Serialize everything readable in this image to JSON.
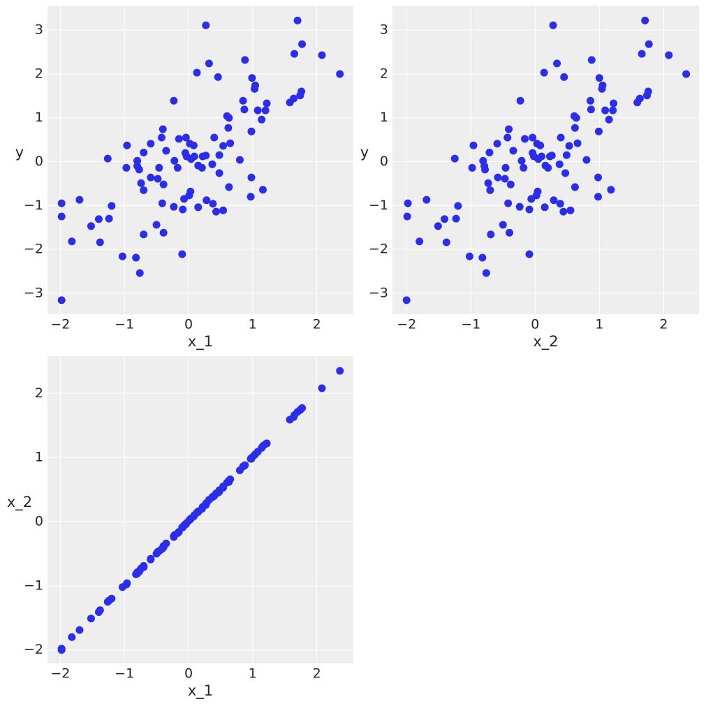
{
  "chart_data": [
    {
      "type": "scatter",
      "xlabel": "x_1",
      "ylabel": "y",
      "color": "#2a2eec",
      "grid": true,
      "xlim": [
        -2.2,
        2.57
      ],
      "ylim": [
        -3.48,
        3.56
      ],
      "xticks": [
        {
          "value": -2,
          "label": "−2"
        },
        {
          "value": -1,
          "label": "−1"
        },
        0,
        1,
        2
      ],
      "yticks": [
        {
          "value": -3,
          "label": "−3"
        },
        {
          "value": -2,
          "label": "−2"
        },
        {
          "value": -1,
          "label": "−1"
        },
        0,
        1,
        2,
        3
      ],
      "x": [
        -1.98,
        -1.98,
        -1.98,
        -1.82,
        -1.7,
        -1.52,
        -1.4,
        -1.38,
        -1.26,
        -1.24,
        -1.2,
        -1.03,
        -0.97,
        -0.96,
        -0.8,
        -0.8,
        -0.82,
        -0.77,
        -0.76,
        -0.74,
        -0.7,
        -0.7,
        -0.7,
        -0.59,
        -0.59,
        -0.5,
        -0.48,
        -0.46,
        -0.42,
        -0.4,
        -0.41,
        -0.39,
        -0.39,
        -0.35,
        -0.23,
        -0.22,
        -0.23,
        -0.17,
        -0.15,
        -0.1,
        -0.09,
        -0.07,
        -0.05,
        -0.04,
        -0.03,
        0.01,
        0.02,
        0.03,
        0.04,
        0.08,
        0.09,
        0.13,
        0.15,
        0.15,
        0.21,
        0.22,
        0.27,
        0.27,
        0.28,
        0.32,
        0.37,
        0.38,
        0.4,
        0.43,
        0.46,
        0.48,
        0.48,
        0.54,
        0.54,
        0.6,
        0.62,
        0.63,
        0.63,
        0.65,
        0.8,
        0.85,
        0.87,
        0.88,
        0.97,
        0.98,
        0.98,
        0.99,
        1.03,
        1.04,
        1.08,
        1.14,
        1.16,
        1.2,
        1.22,
        1.58,
        1.64,
        1.65,
        1.7,
        1.74,
        1.76,
        1.77,
        2.08,
        2.36
      ],
      "values": [
        -0.95,
        -1.25,
        -3.16,
        -1.82,
        -0.87,
        -1.47,
        -1.31,
        -1.84,
        0.07,
        -1.3,
        -1.01,
        -2.16,
        -0.14,
        0.37,
        0.02,
        -0.1,
        -2.19,
        -0.18,
        -2.54,
        -0.49,
        0.21,
        -0.65,
        -1.66,
        0.41,
        -0.36,
        -1.44,
        -0.39,
        -0.14,
        0.55,
        0.74,
        -0.95,
        -0.52,
        -1.62,
        0.25,
        1.39,
        0.02,
        -1.03,
        -0.14,
        0.52,
        -2.11,
        -1.09,
        -0.85,
        0.2,
        0.55,
        0.12,
        -0.77,
        0.41,
        -0.68,
        0.06,
        0.37,
        0.12,
        2.03,
        -0.09,
        -1.04,
        -0.14,
        0.12,
        3.11,
        0.14,
        -0.88,
        2.24,
        -0.06,
        -0.96,
        0.55,
        -1.14,
        1.93,
        0.15,
        -0.26,
        -1.11,
        0.36,
        1.04,
        0.77,
        1.0,
        -0.58,
        0.42,
        0.04,
        1.39,
        1.19,
        2.32,
        -0.8,
        -0.36,
        0.69,
        1.91,
        1.66,
        1.74,
        1.17,
        0.96,
        -0.64,
        1.17,
        1.33,
        1.35,
        1.44,
        2.46,
        3.22,
        1.51,
        1.6,
        2.68,
        2.43,
        2.0
      ]
    },
    {
      "type": "scatter",
      "xlabel": "x_2",
      "ylabel": "y",
      "color": "#2a2eec",
      "grid": true,
      "xlim": [
        -2.22,
        2.55
      ],
      "ylim": [
        -3.48,
        3.56
      ],
      "xticks": [
        {
          "value": -2,
          "label": "−2"
        },
        {
          "value": -1,
          "label": "−1"
        },
        0,
        1,
        2
      ],
      "yticks": [
        {
          "value": -3,
          "label": "−3"
        },
        {
          "value": -2,
          "label": "−2"
        },
        {
          "value": -1,
          "label": "−1"
        },
        0,
        1,
        2,
        3
      ],
      "x": [
        -1.98,
        -1.99,
        -2.0,
        -1.8,
        -1.69,
        -1.51,
        -1.41,
        -1.38,
        -1.25,
        -1.23,
        -1.2,
        -1.02,
        -0.98,
        -0.96,
        -0.81,
        -0.79,
        -0.82,
        -0.78,
        -0.76,
        -0.73,
        -0.71,
        -0.7,
        -0.69,
        -0.59,
        -0.58,
        -0.5,
        -0.47,
        -0.46,
        -0.43,
        -0.41,
        -0.42,
        -0.38,
        -0.4,
        -0.34,
        -0.23,
        -0.21,
        -0.24,
        -0.18,
        -0.16,
        -0.09,
        -0.09,
        -0.06,
        -0.04,
        -0.04,
        -0.02,
        0.02,
        0.03,
        0.04,
        0.05,
        0.08,
        0.1,
        0.14,
        0.16,
        0.15,
        0.2,
        0.23,
        0.28,
        0.26,
        0.29,
        0.34,
        0.38,
        0.39,
        0.4,
        0.44,
        0.45,
        0.49,
        0.47,
        0.55,
        0.53,
        0.61,
        0.62,
        0.64,
        0.62,
        0.66,
        0.8,
        0.86,
        0.87,
        0.88,
        0.98,
        0.98,
        0.99,
        1.0,
        1.04,
        1.05,
        1.09,
        1.15,
        1.18,
        1.21,
        1.22,
        1.59,
        1.63,
        1.66,
        1.71,
        1.74,
        1.76,
        1.77,
        2.08,
        2.35
      ],
      "values": [
        -0.95,
        -1.25,
        -3.16,
        -1.82,
        -0.87,
        -1.47,
        -1.31,
        -1.84,
        0.07,
        -1.3,
        -1.01,
        -2.16,
        -0.14,
        0.37,
        0.02,
        -0.1,
        -2.19,
        -0.18,
        -2.54,
        -0.49,
        0.21,
        -0.65,
        -1.66,
        0.41,
        -0.36,
        -1.44,
        -0.39,
        -0.14,
        0.55,
        0.74,
        -0.95,
        -0.52,
        -1.62,
        0.25,
        1.39,
        0.02,
        -1.03,
        -0.14,
        0.52,
        -2.11,
        -1.09,
        -0.85,
        0.2,
        0.55,
        0.12,
        -0.77,
        0.41,
        -0.68,
        0.06,
        0.37,
        0.12,
        2.03,
        -0.09,
        -1.04,
        -0.14,
        0.12,
        3.11,
        0.14,
        -0.88,
        2.24,
        -0.06,
        -0.96,
        0.55,
        -1.14,
        1.93,
        0.15,
        -0.26,
        -1.11,
        0.36,
        1.04,
        0.77,
        1.0,
        -0.58,
        0.42,
        0.04,
        1.39,
        1.19,
        2.32,
        -0.8,
        -0.36,
        0.69,
        1.91,
        1.66,
        1.74,
        1.17,
        0.96,
        -0.64,
        1.17,
        1.33,
        1.35,
        1.44,
        2.46,
        3.22,
        1.51,
        1.6,
        2.68,
        2.43,
        2.0
      ]
    },
    {
      "type": "scatter",
      "xlabel": "x_1",
      "ylabel": "x_2",
      "color": "#2a2eec",
      "grid": true,
      "xlim": [
        -2.2,
        2.57
      ],
      "ylim": [
        -2.21,
        2.58
      ],
      "xticks": [
        {
          "value": -2,
          "label": "−2"
        },
        {
          "value": -1,
          "label": "−1"
        },
        0,
        1,
        2
      ],
      "yticks": [
        {
          "value": -2,
          "label": "−2"
        },
        {
          "value": -1,
          "label": "−1"
        },
        0,
        1,
        2
      ],
      "x": [
        -1.98,
        -1.98,
        -1.98,
        -1.82,
        -1.7,
        -1.52,
        -1.4,
        -1.38,
        -1.26,
        -1.24,
        -1.2,
        -1.03,
        -0.97,
        -0.96,
        -0.8,
        -0.8,
        -0.82,
        -0.77,
        -0.76,
        -0.74,
        -0.7,
        -0.7,
        -0.7,
        -0.59,
        -0.59,
        -0.5,
        -0.48,
        -0.46,
        -0.42,
        -0.4,
        -0.41,
        -0.39,
        -0.39,
        -0.35,
        -0.23,
        -0.22,
        -0.23,
        -0.17,
        -0.15,
        -0.1,
        -0.09,
        -0.07,
        -0.05,
        -0.04,
        -0.03,
        0.01,
        0.02,
        0.03,
        0.04,
        0.08,
        0.09,
        0.13,
        0.15,
        0.15,
        0.21,
        0.22,
        0.27,
        0.27,
        0.28,
        0.32,
        0.37,
        0.38,
        0.4,
        0.43,
        0.46,
        0.48,
        0.48,
        0.54,
        0.54,
        0.6,
        0.62,
        0.63,
        0.63,
        0.65,
        0.8,
        0.85,
        0.87,
        0.88,
        0.97,
        0.98,
        0.98,
        0.99,
        1.03,
        1.04,
        1.08,
        1.14,
        1.16,
        1.2,
        1.22,
        1.58,
        1.64,
        1.65,
        1.7,
        1.74,
        1.76,
        1.77,
        2.08,
        2.36
      ],
      "values": [
        -1.98,
        -1.99,
        -2.0,
        -1.8,
        -1.69,
        -1.51,
        -1.41,
        -1.38,
        -1.25,
        -1.23,
        -1.2,
        -1.02,
        -0.98,
        -0.96,
        -0.81,
        -0.79,
        -0.82,
        -0.78,
        -0.76,
        -0.73,
        -0.71,
        -0.7,
        -0.69,
        -0.59,
        -0.58,
        -0.5,
        -0.47,
        -0.46,
        -0.43,
        -0.41,
        -0.42,
        -0.38,
        -0.4,
        -0.34,
        -0.23,
        -0.21,
        -0.24,
        -0.18,
        -0.16,
        -0.09,
        -0.09,
        -0.06,
        -0.04,
        -0.04,
        -0.02,
        0.02,
        0.03,
        0.04,
        0.05,
        0.08,
        0.1,
        0.14,
        0.16,
        0.15,
        0.2,
        0.23,
        0.28,
        0.26,
        0.29,
        0.34,
        0.38,
        0.39,
        0.4,
        0.44,
        0.45,
        0.49,
        0.47,
        0.55,
        0.53,
        0.61,
        0.62,
        0.64,
        0.62,
        0.66,
        0.8,
        0.86,
        0.87,
        0.88,
        0.98,
        0.98,
        0.99,
        1.0,
        1.04,
        1.05,
        1.09,
        1.15,
        1.18,
        1.21,
        1.22,
        1.59,
        1.63,
        1.66,
        1.71,
        1.74,
        1.76,
        1.77,
        2.08,
        2.35
      ]
    }
  ]
}
